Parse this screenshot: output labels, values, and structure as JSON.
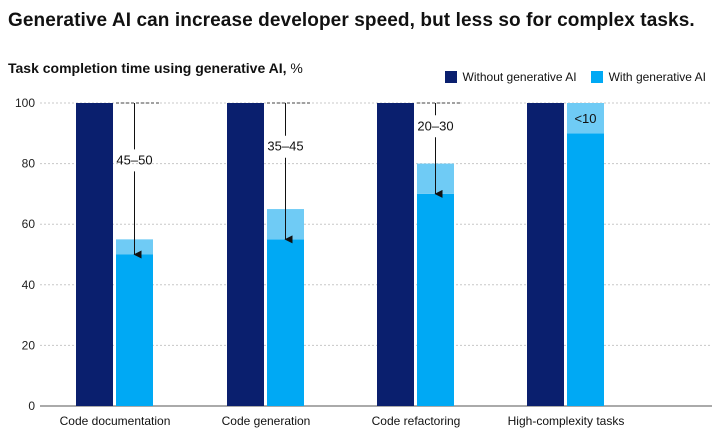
{
  "headline": "Generative AI can increase developer speed, but less so for complex tasks.",
  "chart_data": {
    "type": "bar",
    "title": "Task completion time using generative AI,",
    "unit": "%",
    "legend_position": "top-right",
    "colors": {
      "without": "#0a1f6e",
      "with": "#00a9f4",
      "with_range": "#6fcbf5",
      "grid": "#c8c8c8"
    },
    "ylim": [
      0,
      100
    ],
    "yticks": [
      0,
      20,
      40,
      60,
      80,
      100
    ],
    "grid": true,
    "categories": [
      "Code documentation",
      "Code generation",
      "Code refactoring",
      "High-complexity tasks"
    ],
    "series": [
      {
        "name": "Without generative AI",
        "values": [
          100,
          100,
          100,
          100
        ]
      },
      {
        "name": "With generative AI",
        "values": [
          50,
          55,
          70,
          90
        ],
        "range_top": [
          55,
          65,
          80,
          100
        ]
      }
    ],
    "annotations": [
      {
        "category": "Code documentation",
        "label": "45–50",
        "style": "arrow"
      },
      {
        "category": "Code generation",
        "label": "35–45",
        "style": "arrow"
      },
      {
        "category": "Code refactoring",
        "label": "20–30",
        "style": "arrow"
      },
      {
        "category": "High-complexity tasks",
        "label": "<10",
        "style": "inside"
      }
    ]
  }
}
